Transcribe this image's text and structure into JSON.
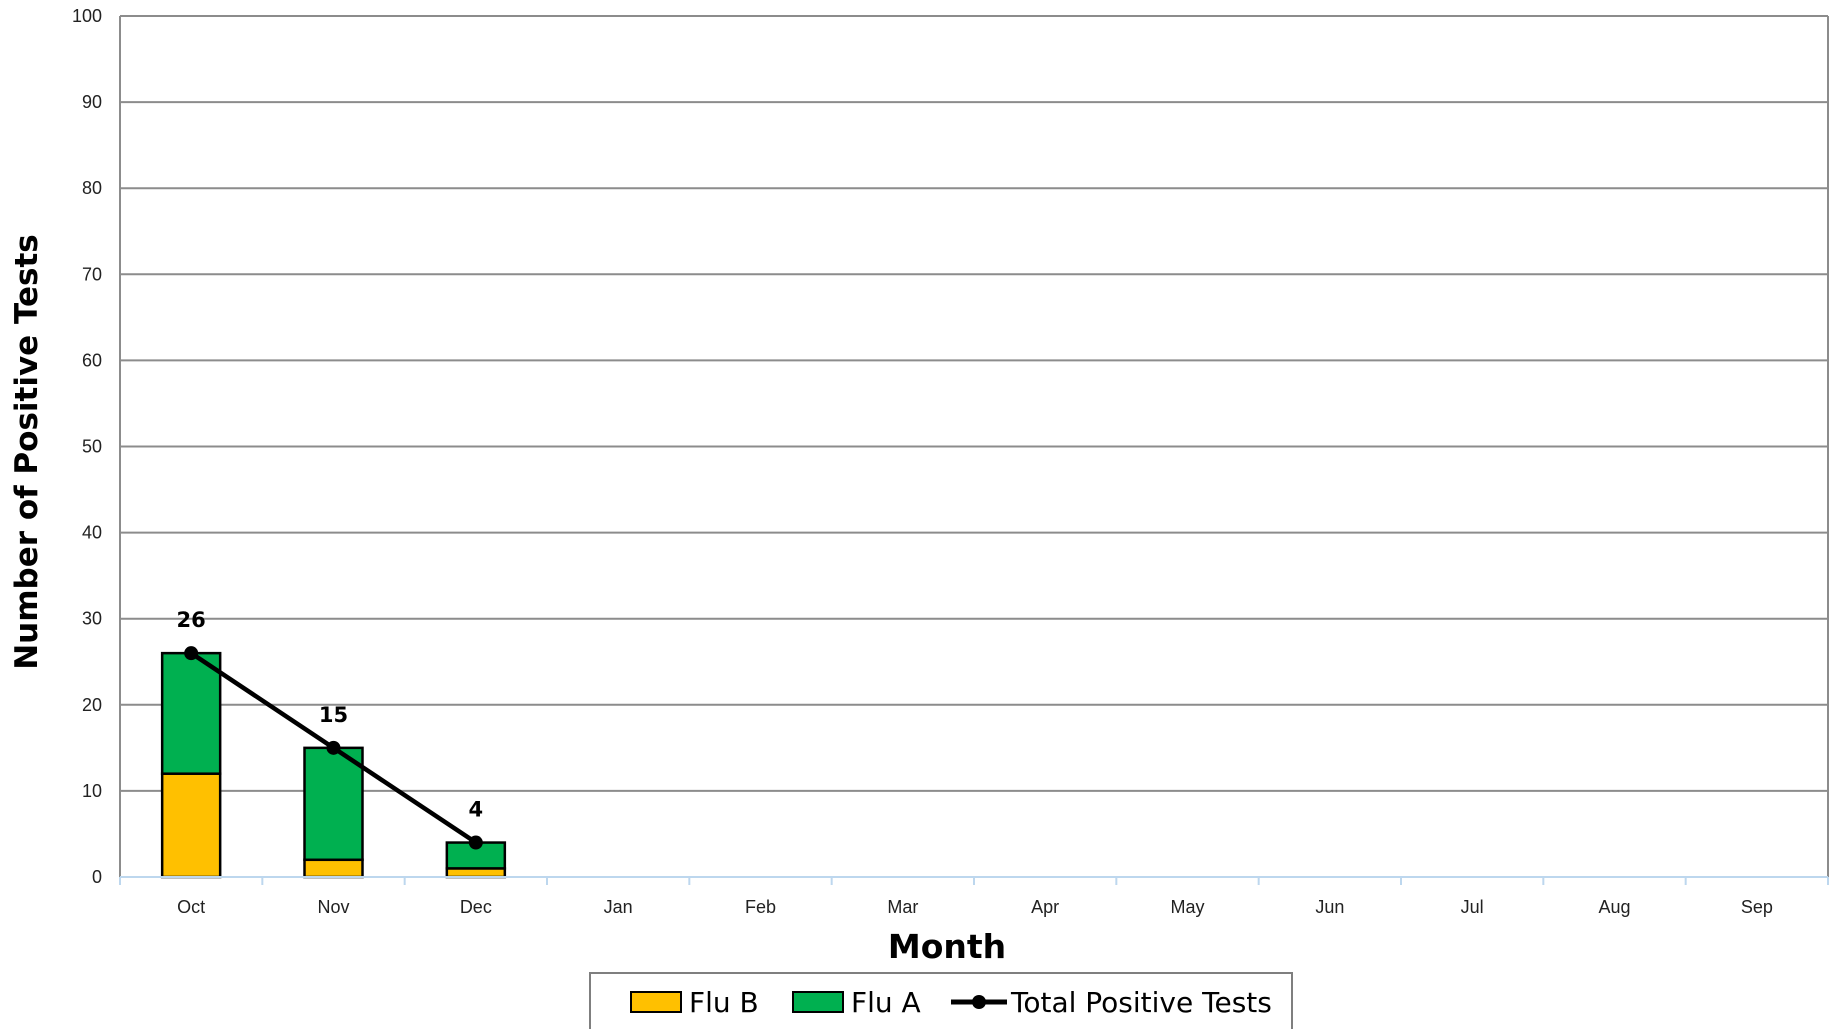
{
  "chart_data": {
    "type": "bar",
    "stacked": true,
    "categories": [
      "Oct",
      "Nov",
      "Dec",
      "Jan",
      "Feb",
      "Mar",
      "Apr",
      "May",
      "Jun",
      "Jul",
      "Aug",
      "Sep"
    ],
    "series": [
      {
        "name": "Flu B",
        "type": "bar",
        "color": "#FFC000",
        "values": [
          12,
          2,
          1,
          null,
          null,
          null,
          null,
          null,
          null,
          null,
          null,
          null
        ]
      },
      {
        "name": "Flu A",
        "type": "bar",
        "color": "#00B050",
        "values": [
          14,
          13,
          3,
          null,
          null,
          null,
          null,
          null,
          null,
          null,
          null,
          null
        ]
      },
      {
        "name": "Total Positive Tests",
        "type": "line",
        "color": "#000000",
        "values": [
          26,
          15,
          4,
          null,
          null,
          null,
          null,
          null,
          null,
          null,
          null,
          null
        ]
      }
    ],
    "data_labels": [
      "26",
      "15",
      "4"
    ],
    "xlabel": "Month",
    "ylabel": "Number of Positive Tests",
    "ylim": [
      0,
      100
    ],
    "yticks": [
      "0",
      "10",
      "20",
      "30",
      "40",
      "50",
      "60",
      "70",
      "80",
      "90",
      "100"
    ],
    "grid": true,
    "legend_position": "bottom"
  }
}
